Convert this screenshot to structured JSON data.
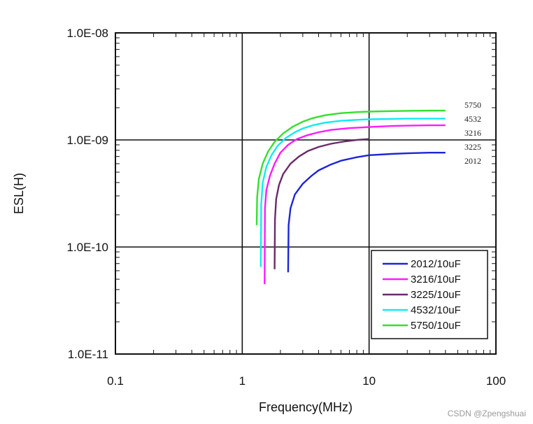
{
  "chart_data": {
    "type": "line",
    "title": "",
    "xlabel": "Frequency(MHz)",
    "ylabel": "ESL(H)",
    "xscale": "log",
    "yscale": "log",
    "xlim": [
      0.1,
      100
    ],
    "ylim": [
      1e-11,
      1e-08
    ],
    "x_tick_labels": [
      "0.1",
      "1",
      "10",
      "100"
    ],
    "y_tick_labels": [
      "1.0E-11",
      "1.0E-10",
      "1.0E-09",
      "1.0E-08"
    ],
    "grid": true,
    "legend_position": "bottom-right",
    "series": [
      {
        "name": "2012/10uF",
        "annotation": "2012",
        "color": "#1c25d6",
        "x": [
          2.3,
          2.32,
          2.4,
          2.6,
          3.0,
          3.5,
          4.0,
          5.0,
          6.0,
          8.0,
          10,
          15,
          20,
          30,
          40
        ],
        "y": [
          5.8e-11,
          1.6e-10,
          2.3e-10,
          3.1e-10,
          3.9e-10,
          4.6e-10,
          5.2e-10,
          5.9e-10,
          6.4e-10,
          6.9e-10,
          7.2e-10,
          7.4e-10,
          7.5e-10,
          7.6e-10,
          7.6e-10
        ]
      },
      {
        "name": "3216/10uF",
        "annotation": "3216",
        "color": "#ff1aff",
        "x": [
          1.5,
          1.51,
          1.55,
          1.65,
          1.8,
          2.0,
          2.3,
          2.7,
          3.2,
          4.0,
          5.0,
          7.0,
          10,
          15,
          20,
          30,
          40
        ],
        "y": [
          4.5e-11,
          2.3e-10,
          3.4e-10,
          4.6e-10,
          6e-10,
          7.6e-10,
          9e-10,
          1.02e-09,
          1.1e-09,
          1.18e-09,
          1.24e-09,
          1.29e-09,
          1.32e-09,
          1.35e-09,
          1.36e-09,
          1.37e-09,
          1.37e-09
        ]
      },
      {
        "name": "3225/10uF",
        "annotation": "3225",
        "color": "#6a2a6a",
        "x": [
          1.8,
          1.81,
          1.85,
          1.95,
          2.1,
          2.4,
          2.8,
          3.3,
          4.0,
          5.0,
          6.5,
          8.0,
          10
        ],
        "y": [
          6.2e-11,
          1.8e-10,
          2.8e-10,
          3.8e-10,
          4.8e-10,
          6e-10,
          7e-10,
          7.9e-10,
          8.6e-10,
          9.2e-10,
          9.7e-10,
          1e-09,
          1.02e-09
        ]
      },
      {
        "name": "4532/10uF",
        "annotation": "4532",
        "color": "#11eaf2",
        "x": [
          1.4,
          1.41,
          1.45,
          1.55,
          1.7,
          1.9,
          2.2,
          2.6,
          3.0,
          3.6,
          4.5,
          6.0,
          8.0,
          10,
          15,
          20,
          30,
          40
        ],
        "y": [
          6.5e-11,
          2.5e-10,
          4e-10,
          5.6e-10,
          7.2e-10,
          8.8e-10,
          1.04e-09,
          1.18e-09,
          1.28e-09,
          1.37e-09,
          1.45e-09,
          1.51e-09,
          1.54e-09,
          1.56e-09,
          1.57e-09,
          1.58e-09,
          1.58e-09,
          1.58e-09
        ]
      },
      {
        "name": "5750/10uF",
        "annotation": "5750",
        "color": "#33e02e",
        "x": [
          1.3,
          1.31,
          1.35,
          1.45,
          1.6,
          1.8,
          2.1,
          2.5,
          3.0,
          3.6,
          4.5,
          6.0,
          8.0,
          10,
          15,
          20,
          30,
          40
        ],
        "y": [
          1.6e-10,
          2.9e-10,
          4.3e-10,
          6e-10,
          7.8e-10,
          9.6e-10,
          1.15e-09,
          1.33e-09,
          1.48e-09,
          1.6e-09,
          1.7e-09,
          1.78e-09,
          1.82e-09,
          1.84e-09,
          1.86e-09,
          1.87e-09,
          1.88e-09,
          1.88e-09
        ]
      }
    ]
  },
  "watermark": "CSDN @Zpengshuai"
}
